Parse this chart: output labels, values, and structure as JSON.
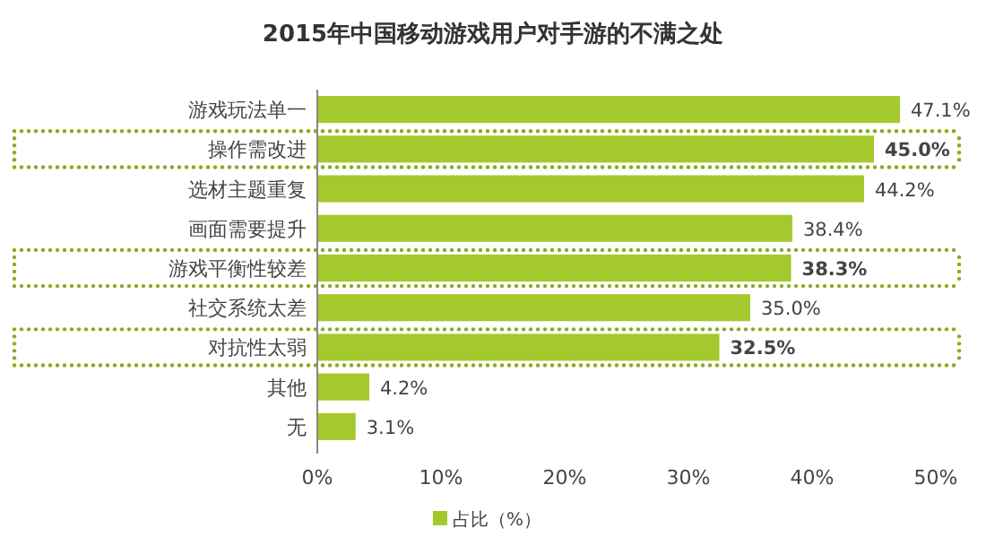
{
  "chart_data": {
    "type": "bar",
    "orientation": "horizontal",
    "title": "2015年中国移动游戏用户对手游的不满之处",
    "categories": [
      "游戏玩法单一",
      "操作需改进",
      "选材主题重复",
      "画面需要提升",
      "游戏平衡性较差",
      "社交系统太差",
      "对抗性太弱",
      "其他",
      "无"
    ],
    "series": [
      {
        "name": "占比（%）",
        "color": "#a3c92c",
        "values": [
          47.1,
          45.0,
          44.2,
          38.4,
          38.3,
          35.0,
          32.5,
          4.2,
          3.1
        ],
        "value_labels": [
          "47.1%",
          "**45.0%**",
          "44.2%",
          "38.4%",
          "**38.3%**",
          "35.0%",
          "**32.5%**",
          "4.2%",
          "3.1%"
        ]
      }
    ],
    "xlim": [
      0,
      50
    ],
    "xticks": [
      {
        "value": 0,
        "label": "0%"
      },
      {
        "value": 10,
        "label": "10%"
      },
      {
        "value": 20,
        "label": "20%"
      },
      {
        "value": 30,
        "label": "30%"
      },
      {
        "value": 40,
        "label": "40%"
      },
      {
        "value": 50,
        "label": "50%"
      }
    ],
    "grid": false,
    "legend": "bottom"
  }
}
